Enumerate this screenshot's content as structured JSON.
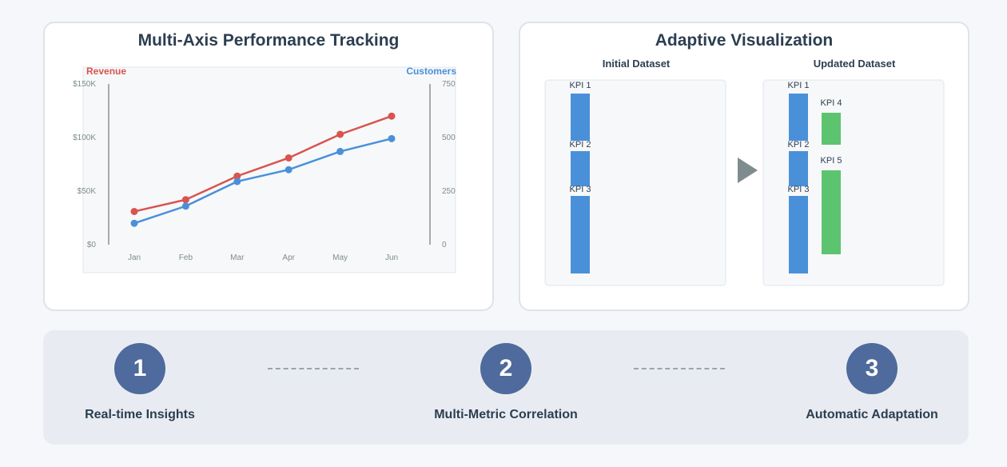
{
  "left_panel": {
    "title": "Multi-Axis Performance Tracking"
  },
  "right_panel": {
    "title": "Adaptive Visualization",
    "initial_label": "Initial Dataset",
    "updated_label": "Updated Dataset"
  },
  "steps": [
    {
      "number": "1",
      "label": "Real-time Insights"
    },
    {
      "number": "2",
      "label": "Multi-Metric Correlation"
    },
    {
      "number": "3",
      "label": "Automatic Adaptation"
    }
  ],
  "colors": {
    "revenue": "#d9534f",
    "customers": "#4a90d9",
    "kpi_blue": "#4a90d9",
    "kpi_green": "#5cc46e",
    "arrow": "#7f8c8d"
  },
  "chart_data": [
    {
      "type": "line",
      "categories": [
        "Jan",
        "Feb",
        "Mar",
        "Apr",
        "May",
        "Jun"
      ],
      "y_left": {
        "label": "Revenue",
        "ticks": [
          "$0",
          "$50K",
          "$100K",
          "$150K"
        ],
        "range": [
          0,
          150000
        ]
      },
      "y_right": {
        "label": "Customers",
        "ticks": [
          "0",
          "250",
          "500",
          "750"
        ],
        "range": [
          0,
          750
        ]
      },
      "series": [
        {
          "name": "Revenue",
          "axis": "left",
          "color": "#d9534f",
          "values": [
            31000,
            42000,
            64000,
            81000,
            103000,
            120000
          ]
        },
        {
          "name": "Customers",
          "axis": "right",
          "color": "#4a90d9",
          "values": [
            100,
            180,
            295,
            350,
            435,
            495
          ]
        }
      ],
      "grid": false
    },
    {
      "type": "bar",
      "label": "Initial Dataset",
      "bars": [
        {
          "name": "KPI 1",
          "color": "#4a90d9"
        },
        {
          "name": "KPI 2",
          "color": "#4a90d9"
        },
        {
          "name": "KPI 3",
          "color": "#4a90d9"
        }
      ]
    },
    {
      "type": "bar",
      "label": "Updated Dataset",
      "bars": [
        {
          "name": "KPI 1",
          "color": "#4a90d9"
        },
        {
          "name": "KPI 2",
          "color": "#4a90d9"
        },
        {
          "name": "KPI 3",
          "color": "#4a90d9"
        },
        {
          "name": "KPI 4",
          "color": "#5cc46e"
        },
        {
          "name": "KPI 5",
          "color": "#5cc46e"
        }
      ]
    }
  ]
}
